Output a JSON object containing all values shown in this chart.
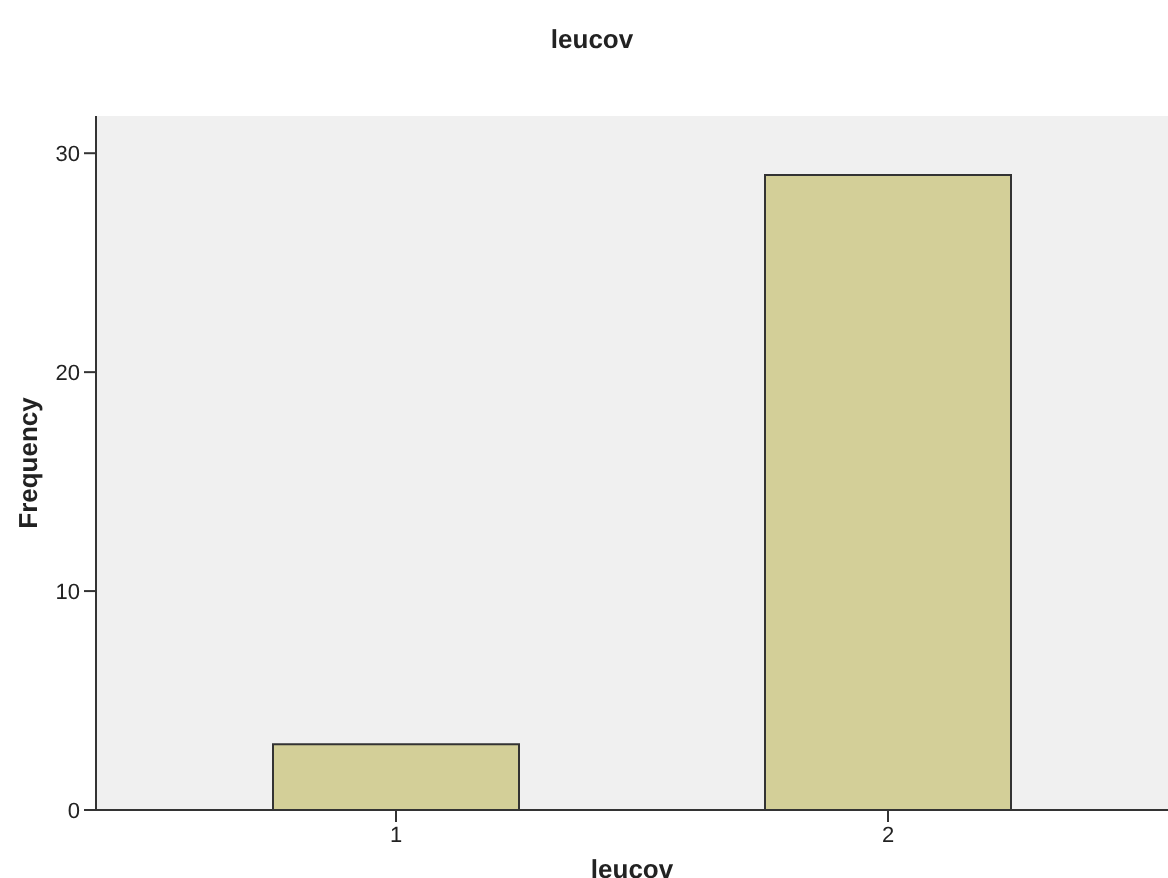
{
  "chart_data": {
    "type": "bar",
    "title": "leucov",
    "xlabel": "leucov",
    "ylabel": "Frequency",
    "categories": [
      "1",
      "2"
    ],
    "values": [
      3,
      29
    ],
    "color": "#d3cf98",
    "ylim": [
      0,
      31.7
    ],
    "yticks": [
      0,
      10,
      20,
      30
    ],
    "grid": false
  }
}
